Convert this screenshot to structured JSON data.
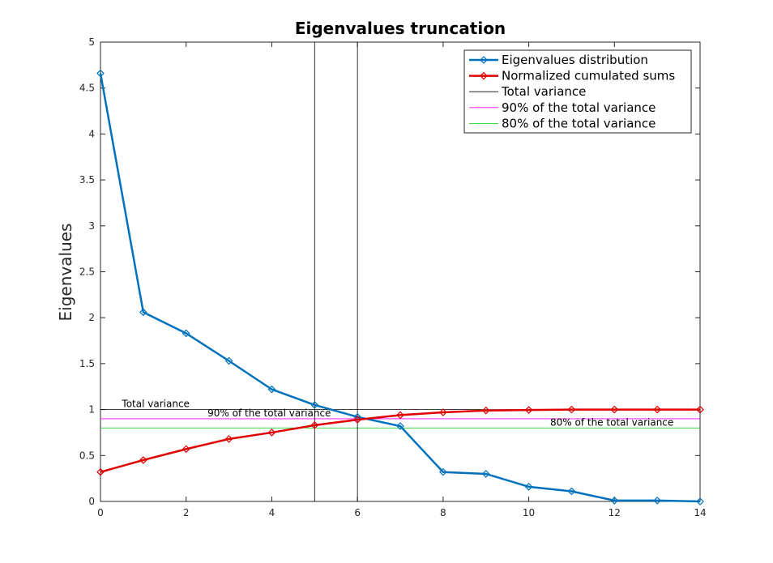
{
  "chart_data": {
    "type": "line",
    "title": "Eigenvalues truncation",
    "xlabel": "",
    "ylabel": "Eigenvalues",
    "xlim": [
      0,
      14
    ],
    "ylim": [
      0,
      5
    ],
    "xticks": [
      0,
      2,
      4,
      6,
      8,
      10,
      12,
      14
    ],
    "yticks": [
      0,
      0.5,
      1,
      1.5,
      2,
      2.5,
      3,
      3.5,
      4,
      4.5,
      5
    ],
    "grid": false,
    "legend_position": "top-right",
    "x": [
      0,
      1,
      2,
      3,
      4,
      5,
      6,
      7,
      8,
      9,
      10,
      11,
      12,
      13,
      14
    ],
    "series": [
      {
        "name": "Eigenvalues distribution",
        "color": "#0072bd",
        "marker": "diamond",
        "values": [
          4.66,
          2.06,
          1.83,
          1.53,
          1.22,
          1.05,
          0.92,
          0.82,
          0.32,
          0.3,
          0.16,
          0.11,
          0.01,
          0.01,
          0.0
        ]
      },
      {
        "name": "Normalized cumulated sums",
        "color": "#e00000",
        "marker": "diamond",
        "values": [
          0.32,
          0.45,
          0.57,
          0.68,
          0.75,
          0.83,
          0.89,
          0.94,
          0.97,
          0.99,
          0.995,
          1.0,
          1.0,
          1.0,
          1.0
        ]
      }
    ],
    "reference_lines": [
      {
        "name": "Total variance",
        "orientation": "horizontal",
        "value": 1.0,
        "color": "#000000"
      },
      {
        "name": "90% of the total variance",
        "orientation": "horizontal",
        "value": 0.9,
        "color": "#ff00ff"
      },
      {
        "name": "80% of the total variance",
        "orientation": "horizontal",
        "value": 0.8,
        "color": "#00cc00"
      }
    ],
    "vertical_lines": [
      {
        "value": 5,
        "color": "#000000"
      },
      {
        "value": 6,
        "color": "#000000"
      }
    ],
    "annotations": [
      {
        "text": "Total variance",
        "x": 0.5,
        "y": 1.0
      },
      {
        "text": "90% of the total variance",
        "x": 2.5,
        "y": 0.9
      },
      {
        "text": "80% of the total variance",
        "x": 10.5,
        "y": 0.8
      }
    ]
  }
}
